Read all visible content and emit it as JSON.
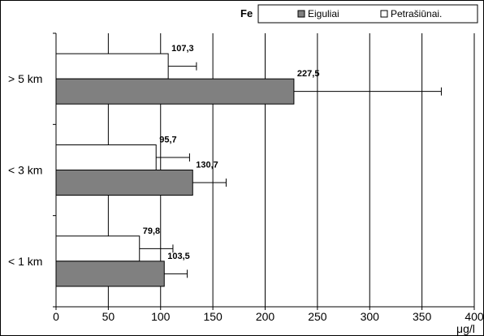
{
  "chart_data": {
    "type": "bar",
    "orientation": "horizontal",
    "title": "Fe",
    "xlabel": "μg/l",
    "ylabel": "",
    "xlim": [
      0,
      400
    ],
    "x_ticks": [
      "0",
      "50",
      "100",
      "150",
      "200",
      "250",
      "300",
      "350",
      "400"
    ],
    "categories": [
      "> 5 km",
      "< 3 km",
      "< 1 km"
    ],
    "series": [
      {
        "name": "Petrašiūnai.",
        "color": "#ffffff",
        "values": [
          107.3,
          95.7,
          79.8
        ],
        "value_labels": [
          "107,3",
          "95,7",
          "79,8"
        ],
        "error_plus": [
          27,
          32,
          32
        ]
      },
      {
        "name": "Eiguliai",
        "color": "#808080",
        "values": [
          227.5,
          130.7,
          103.5
        ],
        "value_labels": [
          "227,5",
          "130,7",
          "103,5"
        ],
        "error_plus": [
          141,
          32,
          22
        ]
      }
    ],
    "grid": "vertical",
    "legend_position": "top-right"
  }
}
